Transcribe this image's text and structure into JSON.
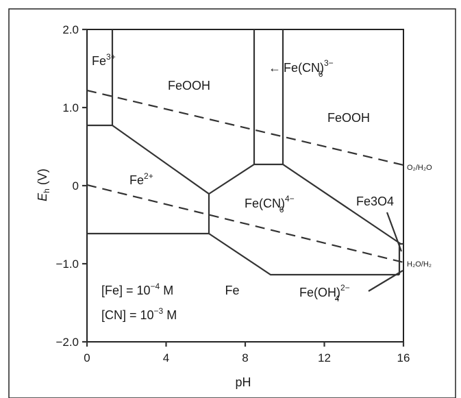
{
  "diagram": {
    "x_axis": {
      "title": "pH",
      "ticks": [
        "0",
        "4",
        "8",
        "12",
        "16"
      ]
    },
    "y_axis": {
      "title_main": "E",
      "title_sub": "h",
      "title_unit": " (V)",
      "ticks": [
        "2.0",
        "1.0",
        "0",
        "−1.0",
        "−2.0"
      ]
    },
    "regions": {
      "fe3": {
        "base": "Fe",
        "sup": "3+"
      },
      "feooh_left": "FeOOH",
      "feooh_right": "FeOOH",
      "fe2": {
        "base": "Fe",
        "sup": "2+"
      },
      "fecn6_4": {
        "base": "Fe(CN)",
        "sub": "6",
        "sup": "4−"
      },
      "fecn6_3": {
        "arrow": "←",
        "base": "Fe(CN)",
        "sub": "6",
        "sup": "3−"
      },
      "fe3o4": "Fe3O4",
      "fe": "Fe",
      "feoh4": {
        "base": "Fe(OH)",
        "sub": "4",
        "sup": "2−"
      }
    },
    "dashed_labels": {
      "o2": "O₂/H₂O",
      "h2o": "H₂O/H₂"
    },
    "conditions": {
      "fe": {
        "lhs": "[Fe] = 10",
        "exp": "−4",
        "rhs": " M"
      },
      "cn": {
        "lhs": "[CN] = 10",
        "exp": "−3",
        "rhs": " M"
      }
    }
  }
}
